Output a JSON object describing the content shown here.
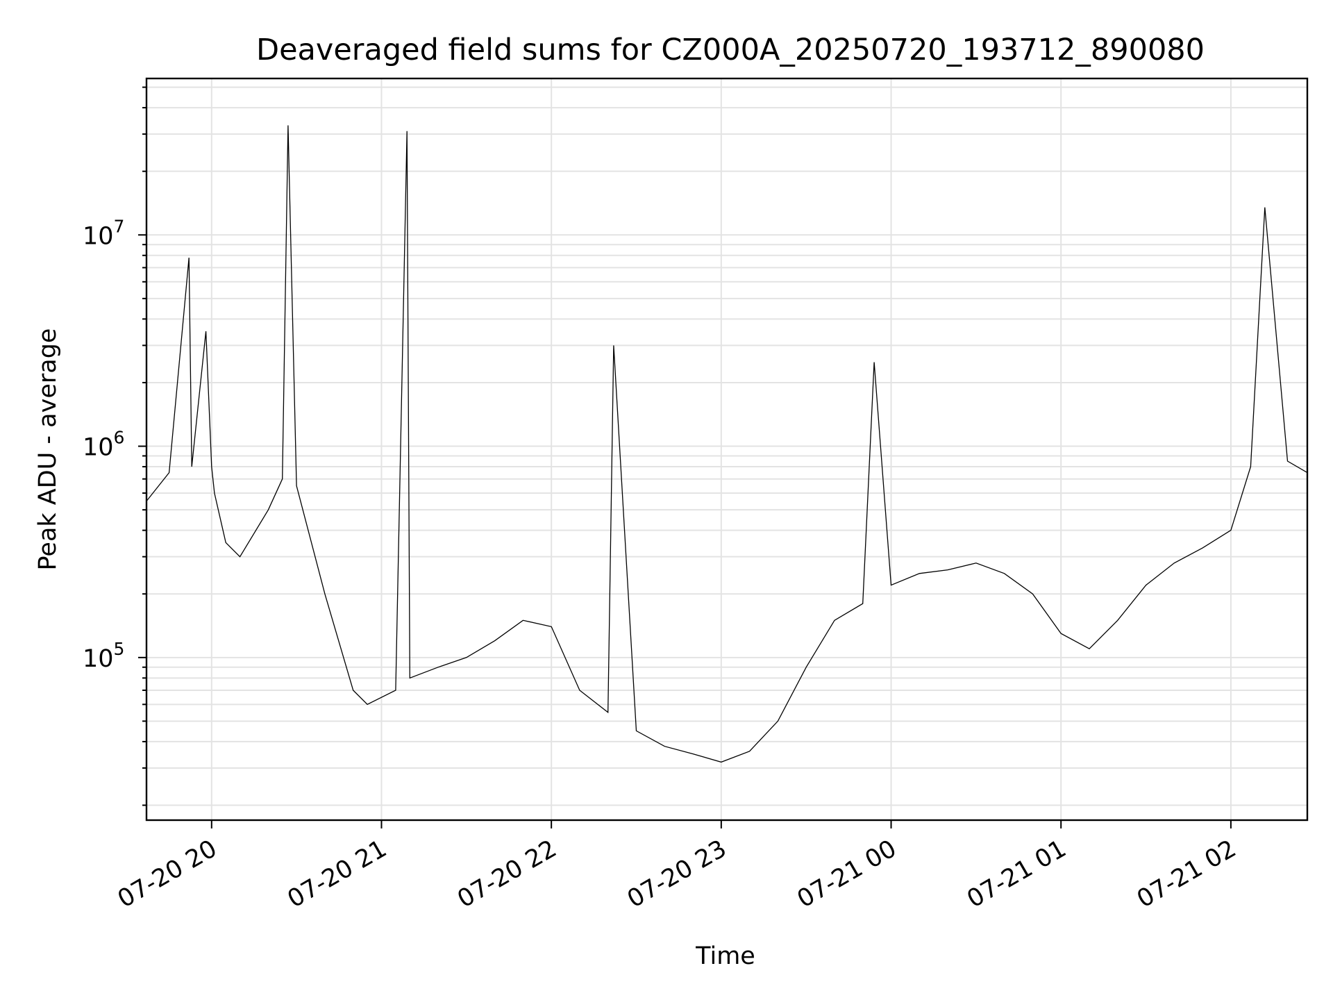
{
  "chart_data": {
    "type": "line",
    "title": "Deaveraged field sums for CZ000A_20250720_193712_890080",
    "xlabel": "Time",
    "ylabel": "Peak ADU - average",
    "yscale": "log",
    "ylim": [
      17000,
      55000000
    ],
    "xlim": [
      "2025-07-20 19:37",
      "2025-07-21 02:27"
    ],
    "grid": true,
    "x_ticks": [
      "07-20 20",
      "07-20 21",
      "07-20 22",
      "07-20 23",
      "07-21 00",
      "07-21 01",
      "07-21 02"
    ],
    "x_tick_times": [
      "2025-07-20 20:00",
      "2025-07-20 21:00",
      "2025-07-20 22:00",
      "2025-07-20 23:00",
      "2025-07-21 00:00",
      "2025-07-21 01:00",
      "2025-07-21 02:00"
    ],
    "y_ticks": [
      {
        "base": "10",
        "exp": "5",
        "value": 100000
      },
      {
        "base": "10",
        "exp": "6",
        "value": 1000000
      },
      {
        "base": "10",
        "exp": "7",
        "value": 10000000
      }
    ],
    "series": [
      {
        "color": "#000000",
        "x": [
          "2025-07-20 19:37",
          "2025-07-20 19:45",
          "2025-07-20 19:52",
          "2025-07-20 19:53",
          "2025-07-20 19:58",
          "2025-07-20 20:00",
          "2025-07-20 20:01",
          "2025-07-20 20:05",
          "2025-07-20 20:10",
          "2025-07-20 20:20",
          "2025-07-20 20:25",
          "2025-07-20 20:27",
          "2025-07-20 20:30",
          "2025-07-20 20:40",
          "2025-07-20 20:50",
          "2025-07-20 20:55",
          "2025-07-20 21:05",
          "2025-07-20 21:09",
          "2025-07-20 21:10",
          "2025-07-20 21:20",
          "2025-07-20 21:30",
          "2025-07-20 21:40",
          "2025-07-20 21:50",
          "2025-07-20 22:00",
          "2025-07-20 22:10",
          "2025-07-20 22:20",
          "2025-07-20 22:22",
          "2025-07-20 22:30",
          "2025-07-20 22:40",
          "2025-07-20 22:50",
          "2025-07-20 23:00",
          "2025-07-20 23:10",
          "2025-07-20 23:20",
          "2025-07-20 23:30",
          "2025-07-20 23:40",
          "2025-07-20 23:50",
          "2025-07-20 23:54",
          "2025-07-21 00:00",
          "2025-07-21 00:10",
          "2025-07-21 00:20",
          "2025-07-21 00:30",
          "2025-07-21 00:40",
          "2025-07-21 00:50",
          "2025-07-21 01:00",
          "2025-07-21 01:10",
          "2025-07-21 01:20",
          "2025-07-21 01:30",
          "2025-07-21 01:40",
          "2025-07-21 01:50",
          "2025-07-21 02:00",
          "2025-07-21 02:07",
          "2025-07-21 02:12",
          "2025-07-21 02:20",
          "2025-07-21 02:27"
        ],
        "y": [
          550000,
          750000,
          7800000,
          800000,
          3500000,
          800000,
          600000,
          350000,
          300000,
          500000,
          700000,
          33000000,
          650000,
          200000,
          70000,
          60000,
          70000,
          31000000,
          80000,
          90000,
          100000,
          120000,
          150000,
          140000,
          70000,
          55000,
          3000000,
          45000,
          38000,
          35000,
          32000,
          36000,
          50000,
          90000,
          150000,
          180000,
          2500000,
          220000,
          250000,
          260000,
          280000,
          250000,
          200000,
          130000,
          110000,
          150000,
          220000,
          280000,
          330000,
          400000,
          800000,
          13500000,
          850000,
          750000
        ]
      }
    ]
  }
}
